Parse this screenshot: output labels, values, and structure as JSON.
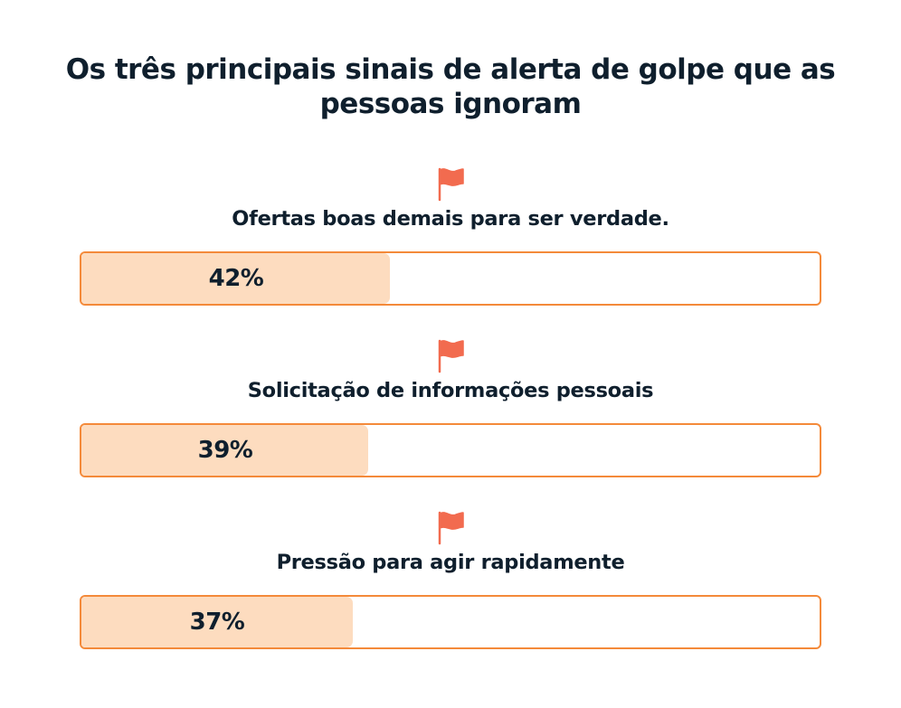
{
  "title": "Os três principais sinais de alerta de golpe que as pessoas ignoram",
  "colors": {
    "bar_border": "#f48a3a",
    "bar_fill": "#fddcbf",
    "flag": "#f26b4f",
    "text": "#0f1f2d"
  },
  "chart_data": {
    "type": "bar",
    "orientation": "horizontal",
    "title": "Os três principais sinais de alerta de golpe que as pessoas ignoram",
    "categories": [
      "Ofertas boas demais para ser verdade.",
      "Solicitação de informações pessoais",
      "Pressão para agir rapidamente"
    ],
    "values": [
      42,
      39,
      37
    ],
    "value_labels": [
      "42%",
      "39%",
      "37%"
    ],
    "xlim": [
      0,
      100
    ],
    "unit": "%",
    "grid": false,
    "icon": "flag-icon"
  }
}
